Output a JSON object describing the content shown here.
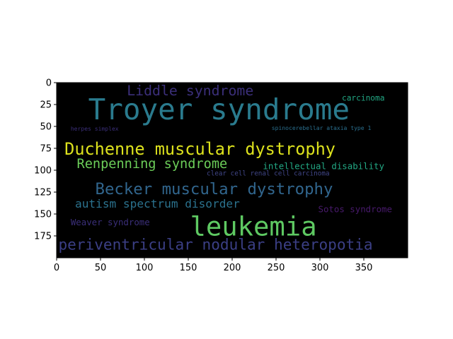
{
  "chart_data": {
    "type": "image",
    "background": "#000000",
    "xlim": [
      0,
      400
    ],
    "ylim": [
      200,
      0
    ],
    "x_ticks": [
      0,
      50,
      100,
      150,
      200,
      250,
      300,
      350
    ],
    "y_ticks": [
      0,
      25,
      50,
      75,
      100,
      125,
      150,
      175
    ],
    "x_tick_labels": [
      "0",
      "50",
      "100",
      "150",
      "200",
      "250",
      "300",
      "350"
    ],
    "y_tick_labels": [
      "0",
      "25",
      "50",
      "75",
      "100",
      "125",
      "150",
      "175"
    ],
    "words": [
      {
        "text": "Liddle syndrome",
        "x": 80,
        "y": 10,
        "size": 16,
        "color": "#3b2f7a"
      },
      {
        "text": "carcinoma",
        "x": 325,
        "y": 18,
        "size": 9,
        "color": "#22a884"
      },
      {
        "text": "Troyer syndrome",
        "x": 36,
        "y": 33,
        "size": 33,
        "color": "#2a7b8e"
      },
      {
        "text": "herpes simplex",
        "x": 16,
        "y": 53,
        "size": 6.5,
        "color": "#3b2f7a"
      },
      {
        "text": "spinocerebellar ataxia type 1",
        "x": 245,
        "y": 52,
        "size": 6.5,
        "color": "#2a6f8e"
      },
      {
        "text": "Duchenne muscular dystrophy",
        "x": 9,
        "y": 77,
        "size": 19,
        "color": "#dde21d"
      },
      {
        "text": "Renpenning syndrome",
        "x": 23,
        "y": 93,
        "size": 15,
        "color": "#6cce59"
      },
      {
        "text": "intellectual disability",
        "x": 235,
        "y": 96,
        "size": 10,
        "color": "#22a884"
      },
      {
        "text": "clear cell renal cell carcinoma",
        "x": 171,
        "y": 104,
        "size": 7.5,
        "color": "#404688"
      },
      {
        "text": "Becker muscular dystrophy",
        "x": 44,
        "y": 122,
        "size": 18,
        "color": "#31668e"
      },
      {
        "text": "autism spectrum disorder",
        "x": 21,
        "y": 139,
        "size": 13,
        "color": "#2b728e"
      },
      {
        "text": "Sotos syndrome",
        "x": 298,
        "y": 145,
        "size": 10,
        "color": "#481a6c"
      },
      {
        "text": "leukemia",
        "x": 152,
        "y": 166,
        "size": 30,
        "color": "#5ec962"
      },
      {
        "text": "Weaver syndrome",
        "x": 16,
        "y": 160,
        "size": 10,
        "color": "#3b2f7a"
      },
      {
        "text": "periventricular nodular heteropotia",
        "x": 2,
        "y": 186,
        "size": 17,
        "color": "#3b3f85"
      }
    ]
  }
}
